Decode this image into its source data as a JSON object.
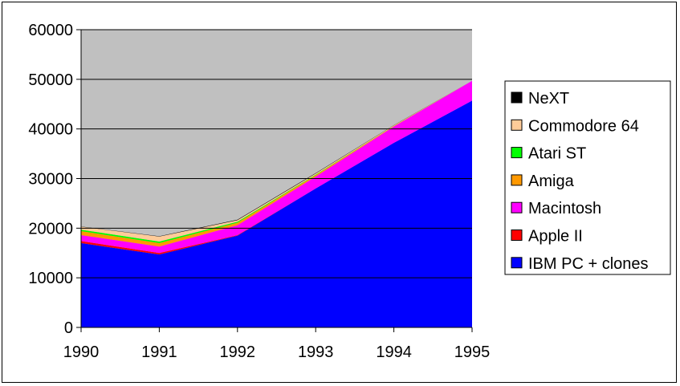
{
  "chart_data": {
    "type": "area",
    "stacked": true,
    "title": "",
    "xlabel": "",
    "ylabel": "",
    "x": [
      "1990",
      "1991",
      "1992",
      "1993",
      "1994",
      "1995"
    ],
    "ylim": [
      0,
      60000
    ],
    "yticks": [
      "0",
      "10000",
      "20000",
      "30000",
      "40000",
      "50000",
      "60000"
    ],
    "grid": "horizontal",
    "plot_background": "#c0c0c0",
    "legend": "right",
    "series": [
      {
        "name": "IBM PC + clones",
        "color": "#0000ff",
        "values": [
          17000,
          14700,
          18500,
          28000,
          37200,
          45700
        ]
      },
      {
        "name": "Apple II",
        "color": "#ff0000",
        "values": [
          400,
          300,
          100,
          0,
          0,
          0
        ]
      },
      {
        "name": "Macintosh",
        "color": "#ff00ff",
        "values": [
          1200,
          1300,
          2000,
          2400,
          3300,
          4000
        ]
      },
      {
        "name": "Amiga",
        "color": "#ff9900",
        "values": [
          800,
          700,
          500,
          300,
          100,
          0
        ]
      },
      {
        "name": "Atari ST",
        "color": "#00ff00",
        "values": [
          300,
          300,
          200,
          100,
          0,
          0
        ]
      },
      {
        "name": "Commodore 64",
        "color": "#ffcc99",
        "values": [
          600,
          1000,
          300,
          200,
          100,
          0
        ]
      },
      {
        "name": "NeXT",
        "color": "#000000",
        "values": [
          50,
          80,
          100,
          100,
          50,
          0
        ]
      }
    ]
  }
}
